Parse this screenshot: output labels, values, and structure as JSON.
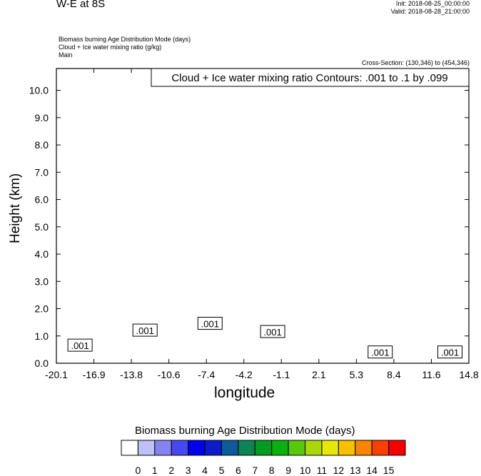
{
  "header": {
    "title": "W-E at 8S",
    "init": "Init: 2018-08-25_00:00:00",
    "valid": "Valid: 2018-08-28_21:00:00",
    "field1": "Biomass burning Age Distribution Mode   (days)",
    "field2": "Cloud + Ice water mixing ratio   (g/kg)",
    "field3": "Main",
    "cross_section": "Cross-Section: (130,346) to (454,346)"
  },
  "chart_data": {
    "type": "heatmap",
    "title": "Cloud + Ice water mixing ratio Contours: .001 to .1 by .099",
    "xlabel": "longitude",
    "ylabel": "Height (km)",
    "x_ticks": [
      "-20.1",
      "-16.9",
      "-13.8",
      "-10.6",
      "-7.4",
      "-4.2",
      "-1.1",
      "2.1",
      "5.3",
      "8.4",
      "11.6",
      "14.8"
    ],
    "y_ticks": [
      "0.0",
      "1.0",
      "2.0",
      "3.0",
      "4.0",
      "5.0",
      "6.0",
      "7.0",
      "8.0",
      "9.0",
      "10.0"
    ],
    "xlim": [
      -20.1,
      14.8
    ],
    "ylim": [
      0.0,
      10.8
    ],
    "contour_labels": [
      {
        "text": ".001",
        "x": -18.1,
        "y": 0.65
      },
      {
        "text": ".001",
        "x": -12.6,
        "y": 1.2
      },
      {
        "text": ".001",
        "x": -7.1,
        "y": 1.45
      },
      {
        "text": ".001",
        "x": -1.8,
        "y": 1.15
      },
      {
        "text": ".001",
        "x": 7.3,
        "y": 0.4
      },
      {
        "text": ".001",
        "x": 13.2,
        "y": 0.4
      }
    ],
    "colorbar": {
      "title": "Biomass burning Age Distribution Mode  (days)",
      "labels": [
        "0",
        "1",
        "2",
        "3",
        "4",
        "5",
        "6",
        "7",
        "8",
        "9",
        "10",
        "11",
        "12",
        "13",
        "14",
        "15"
      ],
      "colors": [
        "#ffffff",
        "#c0c0f8",
        "#8484f0",
        "#4848f0",
        "#0000f0",
        "#0c1cc8",
        "#0c5c9c",
        "#0c8454",
        "#049c20",
        "#0cb00c",
        "#58c80c",
        "#a8d80c",
        "#e8e808",
        "#f8c000",
        "#f88400",
        "#f84000",
        "#f80000"
      ]
    },
    "regions": [
      {
        "level": 0,
        "x": [
          -20.1,
          14.8
        ],
        "y": [
          0.0,
          10.8
        ]
      }
    ]
  }
}
